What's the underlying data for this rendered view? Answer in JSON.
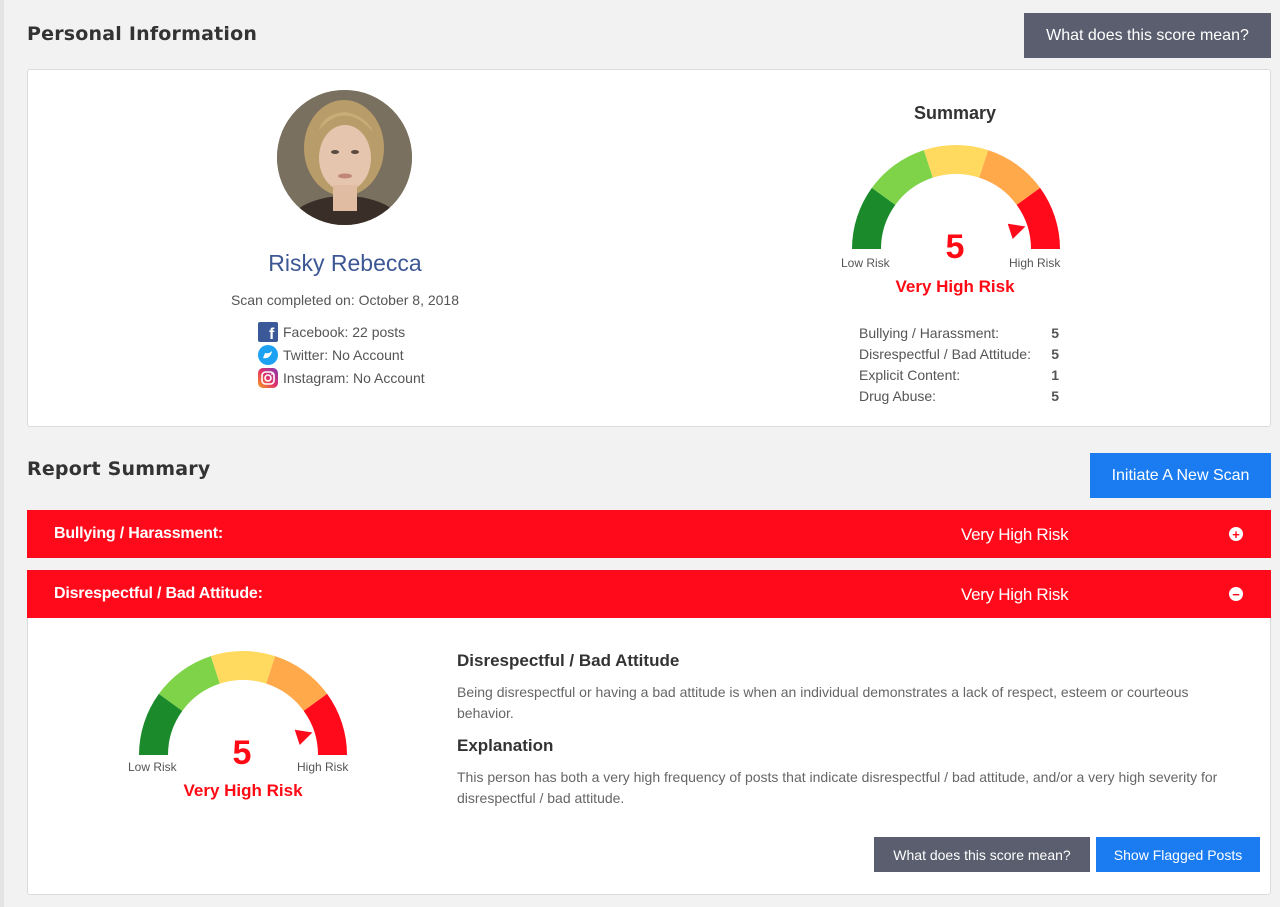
{
  "personal": {
    "section_title": "Personal Information",
    "help_button": "What does this score mean?",
    "name": "Risky Rebecca",
    "scan_completed": "Scan completed on: October 8, 2018",
    "social": [
      {
        "icon": "facebook-icon",
        "text": "Facebook: 22 posts"
      },
      {
        "icon": "twitter-icon",
        "text": "Twitter: No Account"
      },
      {
        "icon": "instagram-icon",
        "text": "Instagram: No Account"
      }
    ]
  },
  "summary": {
    "title": "Summary",
    "score": "5",
    "risk_level": "Very High Risk",
    "low_label": "Low Risk",
    "high_label": "High Risk",
    "categories": [
      {
        "label": "Bullying / Harassment:",
        "value": "5"
      },
      {
        "label": "Disrespectful / Bad Attitude:",
        "value": "5"
      },
      {
        "label": "Explicit Content:",
        "value": "1"
      },
      {
        "label": "Drug Abuse:",
        "value": "5"
      }
    ]
  },
  "report": {
    "section_title": "Report Summary",
    "new_scan_button": "Initiate A New Scan",
    "items": [
      {
        "label": "Bullying / Harassment:",
        "risk": "Very High Risk",
        "toggle": "+"
      },
      {
        "label": "Disrespectful / Bad Attitude:",
        "risk": "Very High Risk",
        "toggle": "−"
      }
    ],
    "detail": {
      "score": "5",
      "risk_level": "Very High Risk",
      "low_label": "Low Risk",
      "high_label": "High Risk",
      "heading": "Disrespectful / Bad Attitude",
      "description": "Being disrespectful or having a bad attitude is when an individual demonstrates a lack of respect, esteem or courteous behavior.",
      "explanation_heading": "Explanation",
      "explanation": "This person has both a very high frequency of posts that indicate disrespectful / bad attitude, and/or a very high severity for disrespectful / bad attitude.",
      "help_button": "What does this score mean?",
      "flagged_button": "Show Flagged Posts"
    }
  },
  "colors": {
    "risk_red": "#ff0a1b",
    "gauge_segments": [
      "#1a8a2a",
      "#7ed348",
      "#ffda5e",
      "#ffa94a",
      "#ff0a1b"
    ],
    "button_gray": "#5a5e6e",
    "button_blue": "#1a7cf0",
    "name_blue": "#3d5794"
  }
}
